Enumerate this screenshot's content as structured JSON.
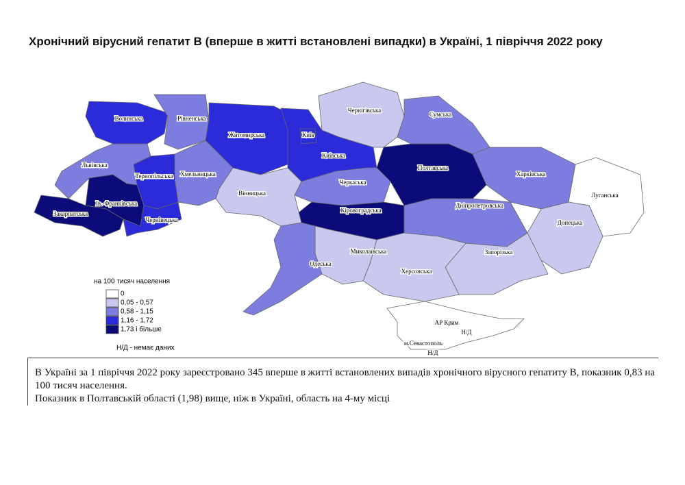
{
  "header": {
    "title": "Хронічний вірусний гепатит В (вперше в житті встановлені випадки) в Україні, 1 півріччя 2022 року"
  },
  "legend": {
    "title": "на 100 тисяч населення",
    "classes": [
      {
        "label": "0",
        "color": "#ffffff"
      },
      {
        "label": "0,05 - 0,57",
        "color": "#c9c9ef"
      },
      {
        "label": "0,58 - 1,15",
        "color": "#7d7de0"
      },
      {
        "label": "1,16 - 1,72",
        "color": "#2b2bd9"
      },
      {
        "label": "1,73 і більше",
        "color": "#0b0b7a"
      }
    ],
    "no_data": "Н/Д - немає даних"
  },
  "regions": [
    {
      "name": "Волинська",
      "class": 3
    },
    {
      "name": "Рівненська",
      "class": 2
    },
    {
      "name": "Житомирська",
      "class": 3
    },
    {
      "name": "Київська",
      "class": 3
    },
    {
      "name": "Київ",
      "class": 3
    },
    {
      "name": "Чернігівська",
      "class": 1
    },
    {
      "name": "Сумська",
      "class": 2
    },
    {
      "name": "Харківська",
      "class": 2
    },
    {
      "name": "Луганська",
      "class": 0
    },
    {
      "name": "Донецька",
      "class": 1
    },
    {
      "name": "Полтавська",
      "class": 4
    },
    {
      "name": "Черкаська",
      "class": 2
    },
    {
      "name": "Кіровоградська",
      "class": 4
    },
    {
      "name": "Дніпропетровська",
      "class": 2
    },
    {
      "name": "Запорізька",
      "class": 1
    },
    {
      "name": "Херсонська",
      "class": 1
    },
    {
      "name": "Миколаївська",
      "class": 1
    },
    {
      "name": "Одеська",
      "class": 2
    },
    {
      "name": "Вінницька",
      "class": 1
    },
    {
      "name": "Хмельницька",
      "class": 2
    },
    {
      "name": "Тернопільська",
      "class": 3
    },
    {
      "name": "Львівська",
      "class": 2
    },
    {
      "name": "Ів.-Франківська",
      "class": 4
    },
    {
      "name": "Закарпатська",
      "class": 4
    },
    {
      "name": "Чернівецька",
      "class": 3
    },
    {
      "name": "АР Крим",
      "class": null
    }
  ],
  "map_notes": [
    "Н/Д",
    "м.Севастополь",
    "Н/Д"
  ],
  "summary": [
    "В Україні за 1 півріччя 2022 року зареєстровано 345 вперше в житті встановлених випадів хронічного вірусного гепатиту В, показник 0,83 на 100 тисяч населення.",
    "Показник в Полтавській області (1,98) вище, ніж в Україні, область на 4-му місці"
  ]
}
